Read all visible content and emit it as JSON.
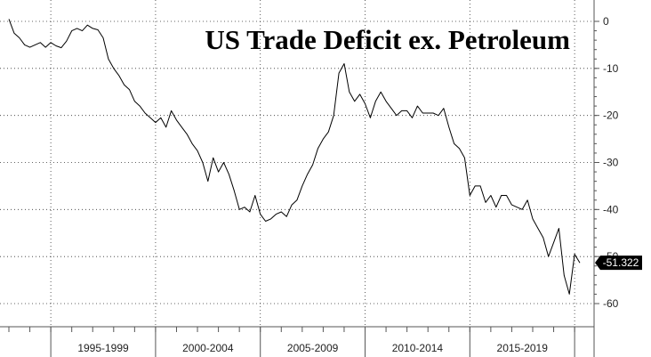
{
  "chart_data": {
    "type": "line",
    "title": "US Trade Deficit ex. Petroleum",
    "xlabel": "",
    "ylabel": "",
    "ylim": [
      -63,
      4
    ],
    "xlim": [
      1993.0,
      2020.6
    ],
    "grid": true,
    "y_axis_side": "right",
    "yticks": [
      0,
      -10,
      -20,
      -30,
      -40,
      -50,
      -60
    ],
    "yticks_label": [
      "0",
      "-10",
      "-20",
      "-30",
      "-40",
      "-50",
      "-60"
    ],
    "x_period_labels": [
      {
        "label": "1995-1999",
        "start": 1995,
        "end": 2000
      },
      {
        "label": "2000-2004",
        "start": 2000,
        "end": 2005
      },
      {
        "label": "2005-2009",
        "start": 2005,
        "end": 2010
      },
      {
        "label": "2010-2014",
        "start": 2010,
        "end": 2015
      },
      {
        "label": "2015-2019",
        "start": 2015,
        "end": 2020
      }
    ],
    "last_value": -51.322,
    "last_value_label": "-51.322",
    "colors": {
      "line": "#000000",
      "last_value_badge": "#000000",
      "background": "#ffffff"
    },
    "series": [
      {
        "x": [
          1993.0,
          1993.25,
          1993.5,
          1993.75,
          1994.0,
          1994.25,
          1994.5,
          1994.75,
          1995.0,
          1995.25,
          1995.5,
          1995.75,
          1996.0,
          1996.25,
          1996.5,
          1996.75,
          1997.0,
          1997.25,
          1997.5,
          1997.75,
          1998.0,
          1998.25,
          1998.5,
          1998.75,
          1999.0,
          1999.25,
          1999.5,
          1999.75,
          2000.0,
          2000.25,
          2000.5,
          2000.75,
          2001.0,
          2001.25,
          2001.5,
          2001.75,
          2002.0,
          2002.25,
          2002.5,
          2002.75,
          2003.0,
          2003.25,
          2003.5,
          2003.75,
          2004.0,
          2004.25,
          2004.5,
          2004.75,
          2005.0,
          2005.25,
          2005.5,
          2005.75,
          2006.0,
          2006.25,
          2006.5,
          2006.75,
          2007.0,
          2007.25,
          2007.5,
          2007.75,
          2008.0,
          2008.25,
          2008.5,
          2008.75,
          2009.0,
          2009.25,
          2009.5,
          2009.75,
          2010.0,
          2010.25,
          2010.5,
          2010.75,
          2011.0,
          2011.25,
          2011.5,
          2011.75,
          2012.0,
          2012.25,
          2012.5,
          2012.75,
          2013.0,
          2013.25,
          2013.5,
          2013.75,
          2014.0,
          2014.25,
          2014.5,
          2014.75,
          2015.0,
          2015.25,
          2015.5,
          2015.75,
          2016.0,
          2016.25,
          2016.5,
          2016.75,
          2017.0,
          2017.25,
          2017.5,
          2017.75,
          2018.0,
          2018.25,
          2018.5,
          2018.75,
          2019.0,
          2019.25,
          2019.5,
          2019.75,
          2020.0,
          2020.25
        ],
        "y": [
          0.5,
          -2.5,
          -3.5,
          -5,
          -5.5,
          -5,
          -4.5,
          -5.5,
          -4.5,
          -5.2,
          -5.6,
          -4.2,
          -2,
          -1.5,
          -2,
          -0.8,
          -1.5,
          -1.8,
          -3.5,
          -8,
          -10,
          -11.5,
          -13.5,
          -14.5,
          -17,
          -18,
          -19.5,
          -20.5,
          -21.5,
          -20.5,
          -22.5,
          -19,
          -21,
          -22.5,
          -24,
          -26,
          -27.5,
          -30,
          -34,
          -29,
          -32,
          -30,
          -32.5,
          -36,
          -40,
          -39.5,
          -40.5,
          -37,
          -41,
          -42.5,
          -42,
          -41,
          -40.5,
          -41.5,
          -39,
          -38,
          -35,
          -32.5,
          -30.5,
          -27,
          -25,
          -23.5,
          -20,
          -11,
          -9,
          -15,
          -17,
          -15.5,
          -17.5,
          -20.5,
          -17,
          -15,
          -17,
          -18.5,
          -20,
          -19,
          -19,
          -20.5,
          -18,
          -19.5,
          -19.5,
          -19.5,
          -20,
          -18.5,
          -22.5,
          -26,
          -27,
          -29,
          -37,
          -35,
          -35,
          -38.5,
          -37,
          -39.5,
          -37,
          -37,
          -39,
          -39.5,
          -40,
          -38,
          -42,
          -44,
          -46,
          -50,
          -47,
          -44,
          -54,
          -58,
          -49.5,
          -51.322
        ]
      }
    ]
  }
}
